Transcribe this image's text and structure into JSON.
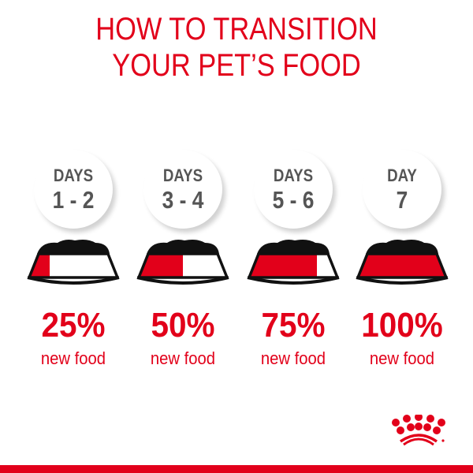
{
  "title": {
    "line1": "HOW TO TRANSITION",
    "line2": "YOUR PET’S FOOD"
  },
  "steps": [
    {
      "days_label": "DAYS",
      "range": "1 - 2",
      "percent": "25%",
      "caption": "new food",
      "new_food_fraction": 0.25
    },
    {
      "days_label": "DAYS",
      "range": "3 - 4",
      "percent": "50%",
      "caption": "new food",
      "new_food_fraction": 0.5
    },
    {
      "days_label": "DAYS",
      "range": "5 - 6",
      "percent": "75%",
      "caption": "new food",
      "new_food_fraction": 0.75
    },
    {
      "days_label": "DAY",
      "range": "7",
      "percent": "100%",
      "caption": "new food",
      "new_food_fraction": 1.0
    }
  ],
  "colors": {
    "accent": "#e2001a",
    "text_gray": "#555555",
    "food": "#111111"
  },
  "logo": {
    "icon": "royal-canin-crown-logo"
  }
}
